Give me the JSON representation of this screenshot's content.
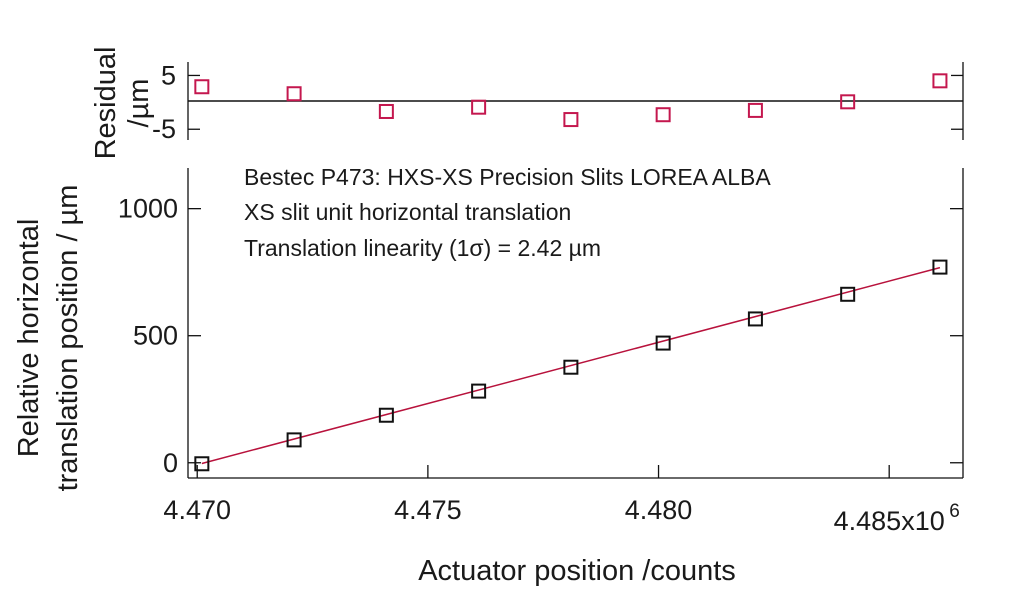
{
  "chart_data": [
    {
      "panel": "residual",
      "type": "scatter",
      "ylabel_line1": "Residual",
      "ylabel_line2": "/µm",
      "y_ticks": [
        5,
        -5
      ],
      "y_tick_labels": [
        "5",
        "-5"
      ],
      "ylim": [
        -7,
        7.5
      ],
      "xlim": [
        4469800,
        4486600
      ],
      "zero_line": 0,
      "marker": "open-square",
      "marker_color": "#c4174e",
      "series": [
        {
          "x": [
            4470100,
            4472100,
            4474100,
            4476100,
            4478100,
            4480100,
            4482100,
            4484100,
            4486100
          ],
          "y": [
            2.9,
            1.6,
            -1.7,
            -0.9,
            -3.2,
            -2.3,
            -1.5,
            0.1,
            4.0
          ]
        }
      ]
    },
    {
      "panel": "main",
      "type": "scatter",
      "xlabel": "Actuator position /counts",
      "ylabel_line1": "Relative horizontal",
      "ylabel_line2": "translation position / µm",
      "x_ticks": [
        4470000,
        4475000,
        4480000,
        4485000
      ],
      "x_tick_labels": [
        "4.470",
        "4.475",
        "4.480",
        "4.485x10"
      ],
      "x_exponent": "6",
      "y_ticks": [
        0,
        500,
        1000
      ],
      "y_tick_labels": [
        "0",
        "500",
        "1000"
      ],
      "xlim": [
        4469800,
        4486600
      ],
      "ylim": [
        -60,
        1160
      ],
      "marker": "open-square",
      "marker_color": "#111111",
      "fit_color": "#b8123c",
      "fit_line": {
        "x": [
          4470100,
          4486100
        ],
        "y": [
          -3,
          768
        ]
      },
      "annotations": [
        "Bestec P473: HXS-XS Precision Slits LOREA ALBA",
        "XS slit unit horizontal translation",
        "Translation linearity (1σ) = 2.42 µm"
      ],
      "series": [
        {
          "x": [
            4470100,
            4472100,
            4474100,
            4476100,
            4478100,
            4480100,
            4482100,
            4484100,
            4486100
          ],
          "y": [
            -4,
            90,
            187,
            282,
            376,
            471,
            566,
            663,
            770
          ]
        }
      ]
    }
  ]
}
